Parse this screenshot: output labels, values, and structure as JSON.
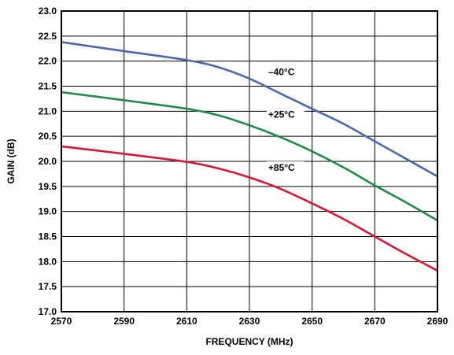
{
  "chart_data": {
    "type": "line",
    "xlabel": "FREQUENCY (MHz)",
    "ylabel": "GAIN (dB)",
    "xlim": [
      2570,
      2690
    ],
    "ylim": [
      17.0,
      23.0
    ],
    "x_ticks": [
      "2570",
      "2590",
      "2610",
      "2630",
      "2650",
      "2670",
      "2690"
    ],
    "y_ticks": [
      "17.0",
      "17.5",
      "18.0",
      "18.5",
      "19.0",
      "19.5",
      "20.0",
      "20.5",
      "21.0",
      "21.5",
      "22.0",
      "22.5",
      "23.0"
    ],
    "grid": true,
    "series": [
      {
        "name": "–40°C",
        "color": "#4a6aa5",
        "x": [
          2570,
          2590,
          2610,
          2620,
          2630,
          2640,
          2650,
          2660,
          2670,
          2680,
          2690
        ],
        "y": [
          22.38,
          22.2,
          22.02,
          21.88,
          21.65,
          21.35,
          21.05,
          20.75,
          20.4,
          20.05,
          19.7
        ]
      },
      {
        "name": "+25°C",
        "color": "#1f8a4a",
        "x": [
          2570,
          2590,
          2610,
          2620,
          2630,
          2640,
          2650,
          2660,
          2670,
          2680,
          2690
        ],
        "y": [
          21.38,
          21.22,
          21.05,
          20.92,
          20.72,
          20.48,
          20.2,
          19.88,
          19.52,
          19.18,
          18.82
        ]
      },
      {
        "name": "+85°C",
        "color": "#d4163c",
        "x": [
          2570,
          2590,
          2610,
          2620,
          2630,
          2640,
          2650,
          2660,
          2670,
          2680,
          2690
        ],
        "y": [
          20.3,
          20.15,
          19.99,
          19.86,
          19.68,
          19.45,
          19.16,
          18.85,
          18.5,
          18.15,
          17.82
        ]
      }
    ]
  }
}
